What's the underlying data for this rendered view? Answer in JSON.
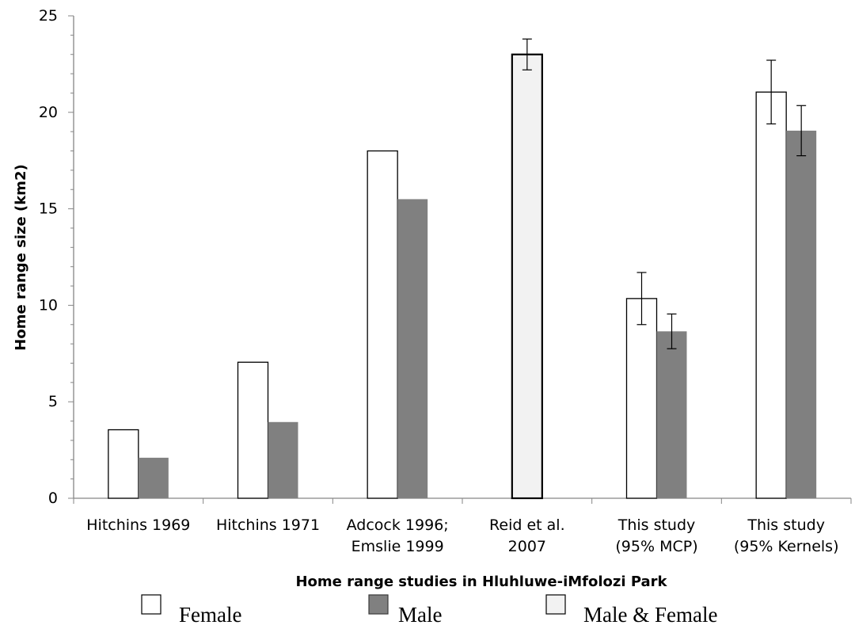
{
  "chart_data": {
    "type": "bar",
    "title": "",
    "xlabel": "Home range studies in Hluhluwe-iMfolozi Park",
    "ylabel": "Home range size (km2)",
    "ylim": [
      0,
      25
    ],
    "yticks": [
      0,
      5,
      10,
      15,
      20,
      25
    ],
    "grid": false,
    "legend_placement": "bottom",
    "categories": [
      [
        "Hitchins 1969"
      ],
      [
        "Hitchins 1971"
      ],
      [
        "Adcock 1996;",
        "Emslie 1999"
      ],
      [
        "Reid et al.",
        "2007"
      ],
      [
        "This study",
        "(95% MCP)"
      ],
      [
        "This study",
        "(95% Kernels)"
      ]
    ],
    "series": [
      {
        "name": "Female",
        "color": "#ffffff",
        "values": [
          3.55,
          7.05,
          18.0,
          null,
          10.35,
          21.05
        ],
        "error": [
          null,
          null,
          null,
          null,
          1.35,
          1.65
        ]
      },
      {
        "name": "Male",
        "color": "#808080",
        "values": [
          2.1,
          3.95,
          15.5,
          null,
          8.65,
          19.05
        ],
        "error": [
          null,
          null,
          null,
          null,
          0.9,
          1.3
        ]
      },
      {
        "name": "Male & Female",
        "color": "#f2f2f2",
        "values": [
          null,
          null,
          null,
          23.0,
          null,
          null
        ],
        "error": [
          null,
          null,
          null,
          0.8,
          null,
          null
        ]
      }
    ]
  }
}
